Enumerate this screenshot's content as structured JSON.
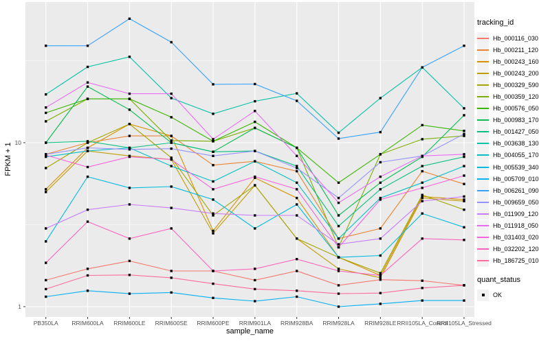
{
  "chart_data": {
    "type": "line",
    "title": "",
    "xlabel": "sample_name",
    "ylabel": "FPKM + 1",
    "yscale": "log10",
    "yticks": [
      1,
      10
    ],
    "ytick_labels": [
      "1",
      "10"
    ],
    "y_minor_ticks": [
      3.162,
      31.62
    ],
    "ylim": [
      0.87,
      72
    ],
    "grid": true,
    "point_marker": "filled-square",
    "legend": {
      "title": "tracking_id",
      "position": "right"
    },
    "legend2": {
      "title": "quant_status",
      "items": [
        {
          "label": "OK",
          "marker": "filled-square",
          "color": "#000000"
        }
      ]
    },
    "categories": [
      "PB350LA",
      "RRIM600LA",
      "RRIM600LE",
      "RRIM600SE",
      "RRIM600PE",
      "RRIM901LA",
      "RRIM928BA",
      "RRIM928LA",
      "RRIM928LE",
      "RRII105LA_Control",
      "RRII105LA_Stressed"
    ],
    "series": [
      {
        "name": "Hb_000116_030",
        "color": "#F8766D",
        "values": [
          1.45,
          1.7,
          1.9,
          1.65,
          1.65,
          1.45,
          1.65,
          1.35,
          1.46,
          1.44,
          1.35
        ]
      },
      {
        "name": "Hb_000211_120",
        "color": "#EA8331",
        "values": [
          8.5,
          10.0,
          11.0,
          11.0,
          7.3,
          7.7,
          6.7,
          2.6,
          3.0,
          6.7,
          5.6
        ]
      },
      {
        "name": "Hb_000243_160",
        "color": "#D89000",
        "values": [
          5.2,
          9.3,
          13.0,
          11.0,
          2.9,
          6.1,
          4.6,
          2.0,
          1.55,
          4.7,
          4.5
        ]
      },
      {
        "name": "Hb_000243_200",
        "color": "#C09B00",
        "values": [
          5.0,
          8.9,
          8.3,
          7.9,
          2.8,
          5.5,
          2.6,
          1.7,
          1.5,
          4.6,
          4.4
        ]
      },
      {
        "name": "Hb_000329_590",
        "color": "#A3A500",
        "values": [
          7.0,
          10.0,
          13.0,
          8.1,
          3.6,
          5.5,
          2.6,
          2.0,
          1.6,
          4.8,
          3.9
        ]
      },
      {
        "name": "Hb_000359_120",
        "color": "#7CAE00",
        "values": [
          13.5,
          18.5,
          18.5,
          10.3,
          10.2,
          12.3,
          9.3,
          2.3,
          8.5,
          10.5,
          11.0
        ]
      },
      {
        "name": "Hb_000576_050",
        "color": "#39B600",
        "values": [
          15.2,
          18.5,
          18.5,
          14.3,
          10.2,
          13.4,
          9.3,
          5.7,
          8.5,
          12.8,
          11.8
        ]
      },
      {
        "name": "Hb_000983_170",
        "color": "#00BB4E",
        "values": [
          10.0,
          22.0,
          15.9,
          10.0,
          8.8,
          12.3,
          9.3,
          3.6,
          5.7,
          8.2,
          14.7
        ]
      },
      {
        "name": "Hb_001427_050",
        "color": "#00BF7D",
        "values": [
          10.0,
          10.2,
          9.3,
          10.0,
          8.8,
          8.9,
          7.2,
          3.1,
          5.2,
          7.2,
          8.2
        ]
      },
      {
        "name": "Hb_003638_130",
        "color": "#00C1A3",
        "values": [
          19.7,
          29.0,
          33.4,
          18.7,
          15.0,
          17.9,
          20.0,
          11.5,
          18.7,
          28.8,
          16.2
        ]
      },
      {
        "name": "Hb_004055_170",
        "color": "#00BFC4",
        "values": [
          8.2,
          8.9,
          9.3,
          7.2,
          5.8,
          7.7,
          5.7,
          2.6,
          4.6,
          5.7,
          7.2
        ]
      },
      {
        "name": "Hb_005539_340",
        "color": "#00BAE0",
        "values": [
          2.5,
          6.2,
          5.3,
          5.4,
          4.5,
          3.0,
          4.2,
          2.0,
          2.05,
          3.7,
          3.05
        ]
      },
      {
        "name": "Hb_005709_010",
        "color": "#00B0F6",
        "values": [
          1.15,
          1.25,
          1.2,
          1.22,
          1.13,
          1.08,
          1.15,
          1.0,
          1.04,
          1.09,
          1.09
        ]
      },
      {
        "name": "Hb_006261_090",
        "color": "#35A2FF",
        "values": [
          39,
          39,
          57,
          41,
          22.7,
          22.8,
          18.0,
          10.6,
          11.6,
          28.8,
          39
        ]
      },
      {
        "name": "Hb_009659_050",
        "color": "#9590FF",
        "values": [
          8.5,
          9.3,
          9.1,
          9.2,
          8.3,
          8.9,
          7.0,
          4.6,
          7.6,
          8.3,
          11.3
        ]
      },
      {
        "name": "Hb_011909_120",
        "color": "#C77CFF",
        "values": [
          3.0,
          3.9,
          4.2,
          4.0,
          3.7,
          3.6,
          3.6,
          2.4,
          2.6,
          4.4,
          4.7
        ]
      },
      {
        "name": "Hb_011918_050",
        "color": "#E76BF3",
        "values": [
          16.4,
          23.3,
          19.9,
          19.9,
          10.5,
          15.6,
          8.3,
          4.3,
          6.2,
          8.3,
          8.5
        ]
      },
      {
        "name": "Hb_031403_020",
        "color": "#FA62DB",
        "values": [
          8.4,
          7.1,
          8.2,
          7.9,
          5.2,
          6.2,
          5.2,
          2.3,
          4.5,
          5.3,
          6.3
        ]
      },
      {
        "name": "Hb_032202_120",
        "color": "#FF62BC",
        "values": [
          1.85,
          3.3,
          2.6,
          3.0,
          1.65,
          1.7,
          1.95,
          1.65,
          1.55,
          2.6,
          2.55
        ]
      },
      {
        "name": "Hb_186725_010",
        "color": "#FF6A98",
        "values": [
          1.28,
          1.55,
          1.56,
          1.5,
          1.38,
          1.28,
          1.25,
          1.2,
          1.21,
          1.3,
          1.35
        ]
      }
    ]
  },
  "colors": {
    "panel_bg": "#EBEBEB",
    "grid": "#FFFFFF",
    "axis_text": "#4D4D4D",
    "tick": "#333333",
    "point": "#000000",
    "legend_key_bg": "#F2F2F2"
  }
}
